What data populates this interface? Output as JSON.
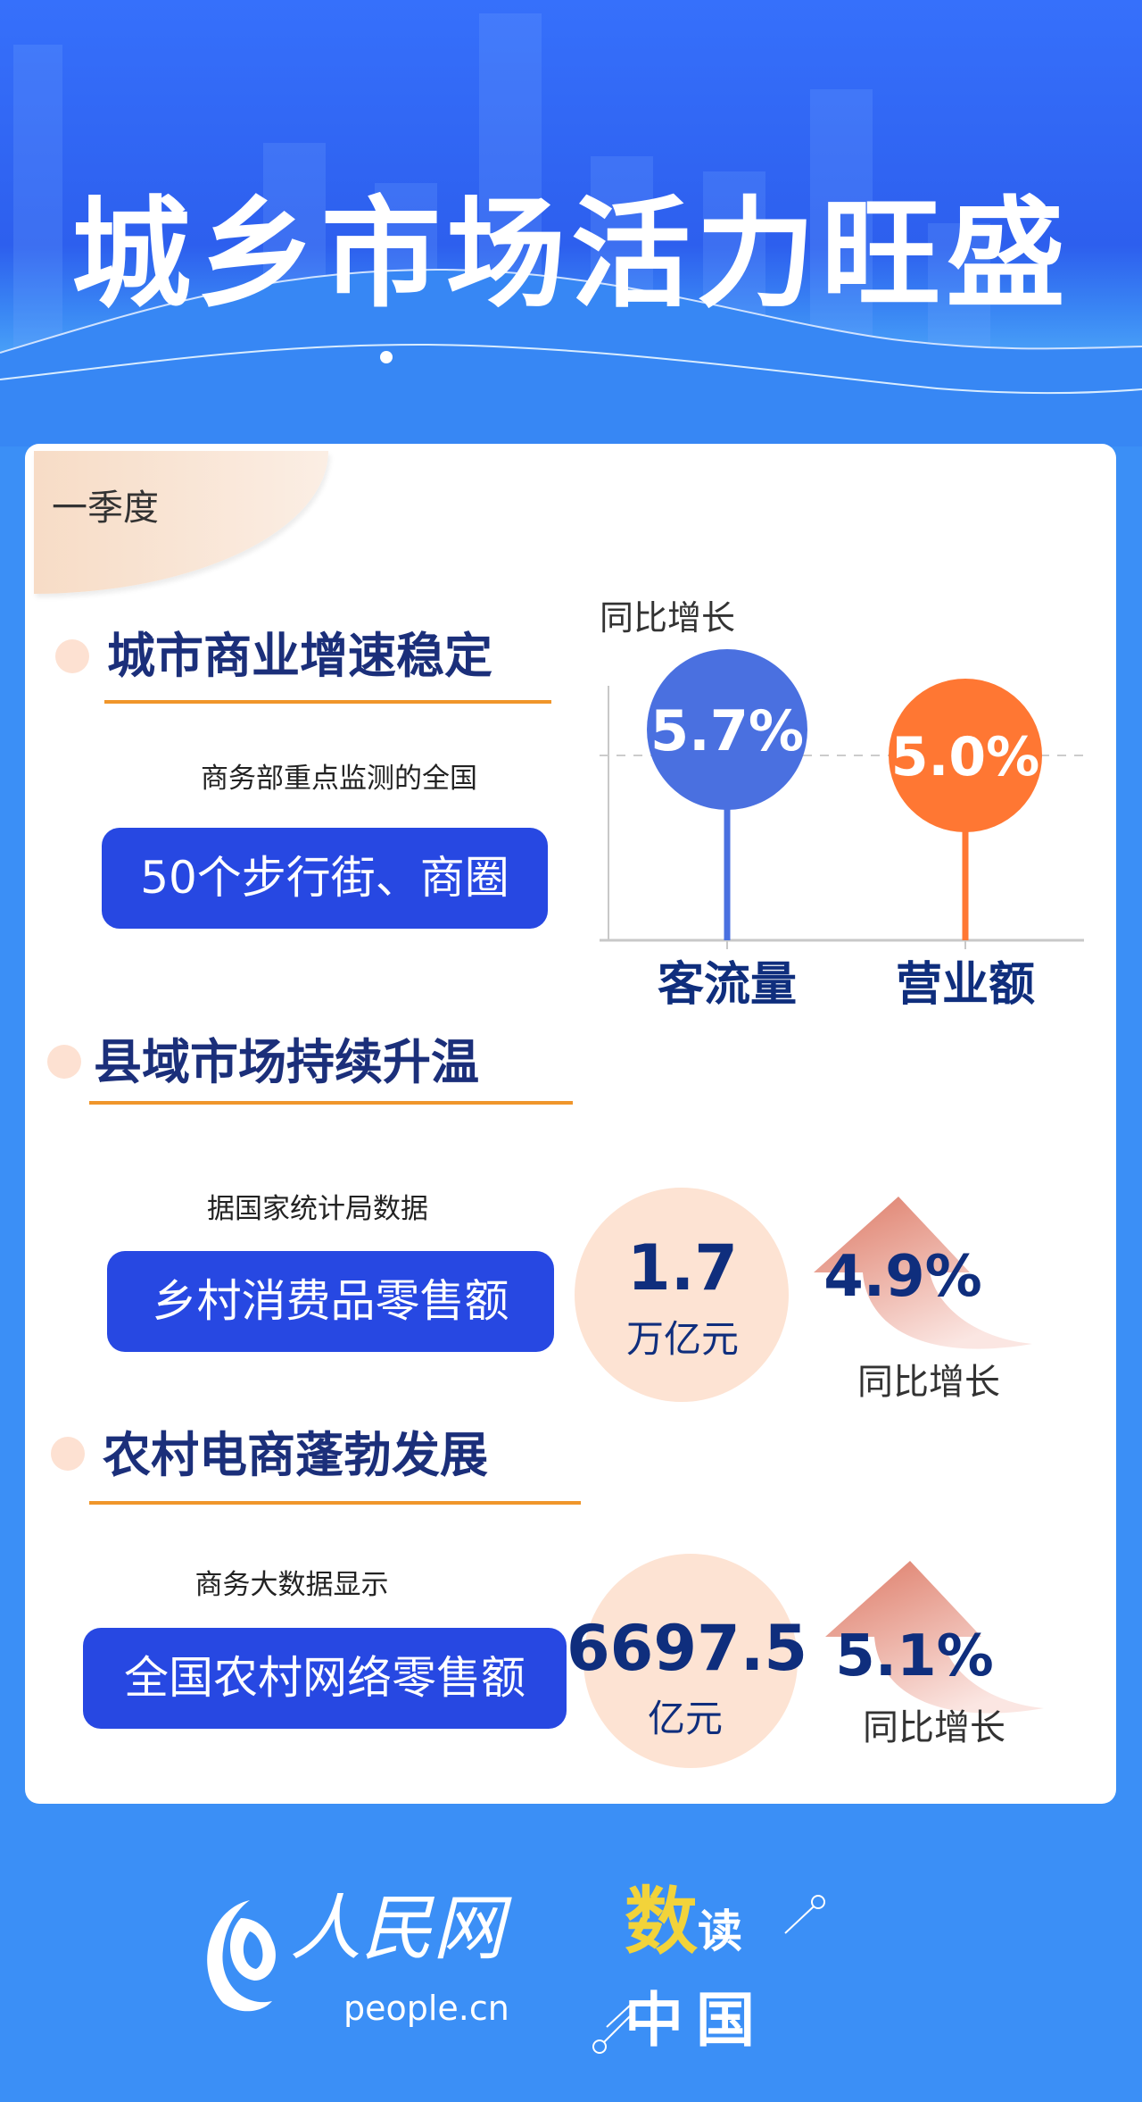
{
  "header": {
    "title": "城乡市场活力旺盛"
  },
  "period": "一季度",
  "sections": [
    {
      "heading": "城市商业增速稳定",
      "source": "商务部重点监测的全国",
      "highlight": "50个步行街、商圈"
    },
    {
      "heading": "县域市场持续升温",
      "source": "据国家统计局数据",
      "highlight": "乡村消费品零售额",
      "value": "1.7",
      "unit": "万亿元",
      "growth": "4.9%",
      "growth_label": "同比增长"
    },
    {
      "heading": "农村电商蓬勃发展",
      "source": "商务大数据显示",
      "highlight": "全国农村网络零售额",
      "value": "6697.5",
      "unit": "亿元",
      "growth": "5.1%",
      "growth_label": "同比增长"
    }
  ],
  "chart_data": {
    "type": "lollipop",
    "title": "同比增长",
    "categories": [
      "客流量",
      "营业额"
    ],
    "values": [
      5.7,
      5.0
    ],
    "labels": [
      "5.7%",
      "5.0%"
    ],
    "colors": [
      "#4a70e0",
      "#ff7733"
    ],
    "reference_line": 5.0,
    "ylim": [
      0,
      7.2
    ],
    "grid": false
  },
  "colors": {
    "accent": "#2748e2",
    "heading": "#1b2f7a",
    "underline": "#f0962b",
    "background": "#3b8ff6"
  },
  "footer": {
    "logo_text": "人民网",
    "logo_url_text": "people.cn",
    "brand": "数读中国"
  }
}
